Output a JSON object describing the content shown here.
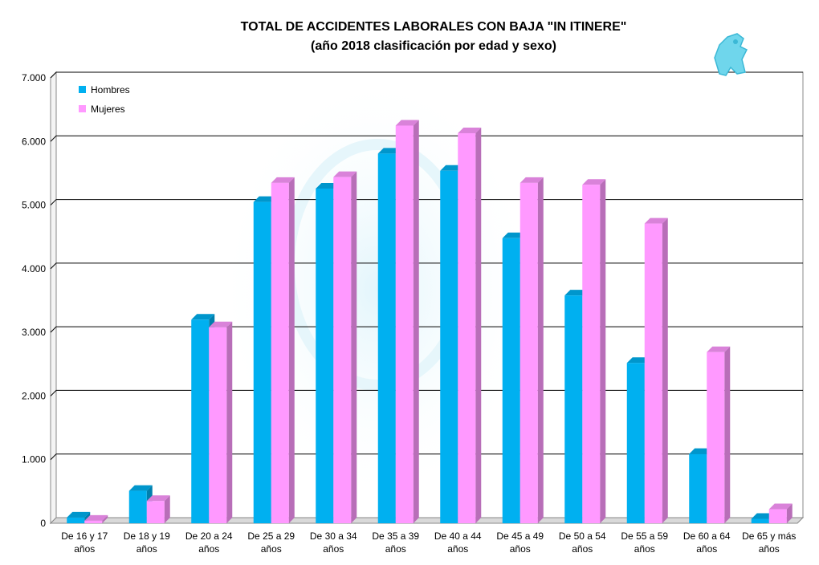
{
  "chart_data": {
    "type": "bar",
    "title": "TOTAL DE ACCIDENTES LABORALES CON BAJA \"IN ITINERE\"",
    "subtitle": "(año 2018 clasificación por edad y sexo)",
    "xlabel": "",
    "ylabel": "",
    "ylim": [
      0,
      7000
    ],
    "yticks": [
      "0",
      "1.000",
      "2.000",
      "3.000",
      "4.000",
      "5.000",
      "6.000",
      "7.000"
    ],
    "grid": true,
    "legend_position": "top-left",
    "categories": [
      [
        "De 16 y 17",
        "años"
      ],
      [
        "De 18 y 19",
        "años"
      ],
      [
        "De 20 a 24",
        "años"
      ],
      [
        "De 25 a 29",
        "años"
      ],
      [
        "De 30 a 34",
        "años"
      ],
      [
        "De 35 a 39",
        "años"
      ],
      [
        "De 40 a 44",
        "años"
      ],
      [
        "De 45 a 49",
        "años"
      ],
      [
        "De 50 a 54",
        "años"
      ],
      [
        "De 55 a 59",
        "años"
      ],
      [
        "De 60 a 64",
        "años"
      ],
      [
        "De 65 y más",
        "años"
      ]
    ],
    "series": [
      {
        "name": "Hombres",
        "color": "#00B0F0",
        "values": [
          90,
          510,
          3200,
          5050,
          5260,
          5810,
          5540,
          4480,
          3580,
          2520,
          1090,
          70
        ]
      },
      {
        "name": "Mujeres",
        "color": "#FF99FF",
        "values": [
          40,
          350,
          3080,
          5350,
          5440,
          6250,
          6130,
          5350,
          5320,
          4710,
          2690,
          220
        ]
      }
    ]
  }
}
